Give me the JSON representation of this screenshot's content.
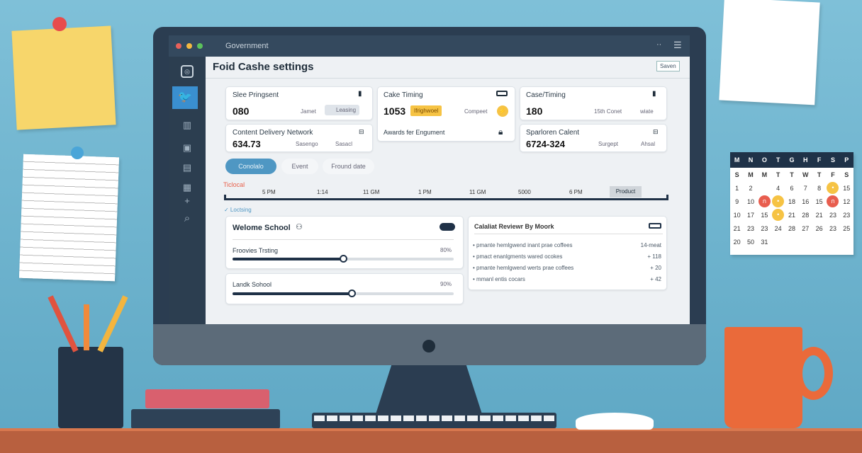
{
  "window": {
    "title": "Government",
    "menu_icon": "hamburger-icon",
    "page_title": "Foid Cashe settings",
    "save_label": "Saven"
  },
  "sidebar": {
    "items": [
      "instagram-icon",
      "twitter-icon",
      "trash-icon",
      "save-icon",
      "card-icon",
      "clipboard-icon",
      "plus-icon",
      "search-icon"
    ]
  },
  "cards": [
    {
      "title": "Slee Pringsent",
      "value": "080",
      "meta": "Jamet",
      "badge": "Leasing"
    },
    {
      "title": "Cake Timing",
      "value": "1053",
      "highlight": "Ifrighwoel",
      "meta": "Compeet"
    },
    {
      "title": "Case/Timing",
      "value": "180",
      "meta": "15th Conet",
      "badge": "wiate"
    },
    {
      "title": "Content Delivery Network",
      "value": "634.73",
      "meta": "Sasengo",
      "badge": "Sasacl"
    },
    {
      "title": "Awards fer Engument"
    },
    {
      "title": "Sparloren Calent",
      "value": "6724-324",
      "meta": "Surgept",
      "badge": "Ahsal"
    }
  ],
  "pills": [
    "Conolalo",
    "Event",
    "Fround date"
  ],
  "timeline": {
    "label": "Ticlocal",
    "ticks": [
      "5 PM",
      "1:14",
      "11 GM",
      "1 PM",
      "11 GM",
      "5000",
      "6 PM"
    ],
    "active": "Product"
  },
  "status": "✓ Loctsing",
  "panel": {
    "title": "Welome School",
    "rows": [
      {
        "label": "Froovies Trsting",
        "value": "80%",
        "level": 0.5
      },
      {
        "label": "Landk Sohool",
        "value": "90%",
        "level": 0.54
      }
    ]
  },
  "review": {
    "title": "Calaliat Reviewr By Moork",
    "items": [
      {
        "text": "pmante hemlgwend inant prae coffees",
        "value": "14-meat"
      },
      {
        "text": "pmact enanlgments wared ocokes",
        "value": "+ 118"
      },
      {
        "text": "pmante hemlgwend werts prae coffees",
        "value": "+ 20"
      },
      {
        "text": "mmanl entis cocars",
        "value": "+ 42"
      }
    ]
  },
  "calendar": {
    "header": [
      "M",
      "N",
      "O",
      "T",
      "G",
      "H",
      "F",
      "S",
      "P"
    ],
    "weekdays": [
      "S",
      "M",
      "M",
      "T",
      "T",
      "W",
      "T",
      "F",
      "S"
    ],
    "rows": [
      [
        "1",
        "2",
        "",
        "4",
        "6",
        "7",
        "8",
        "•",
        "15"
      ],
      [
        "9",
        "10",
        "ก",
        "•",
        "18",
        "16",
        "15",
        "ก",
        "12"
      ],
      [
        "10",
        "17",
        "15",
        "•",
        "21",
        "28",
        "21",
        "23",
        "23"
      ],
      [
        "21",
        "23",
        "23",
        "24",
        "28",
        "27",
        "26",
        "23",
        "25"
      ],
      [
        "20",
        "50",
        "31",
        "",
        "",
        "",
        "",
        "",
        ""
      ]
    ]
  },
  "colors": {
    "accent": "#4f97c3",
    "highlight": "#f6c344",
    "red": "#e85d4e",
    "dark": "#2b3d51"
  }
}
